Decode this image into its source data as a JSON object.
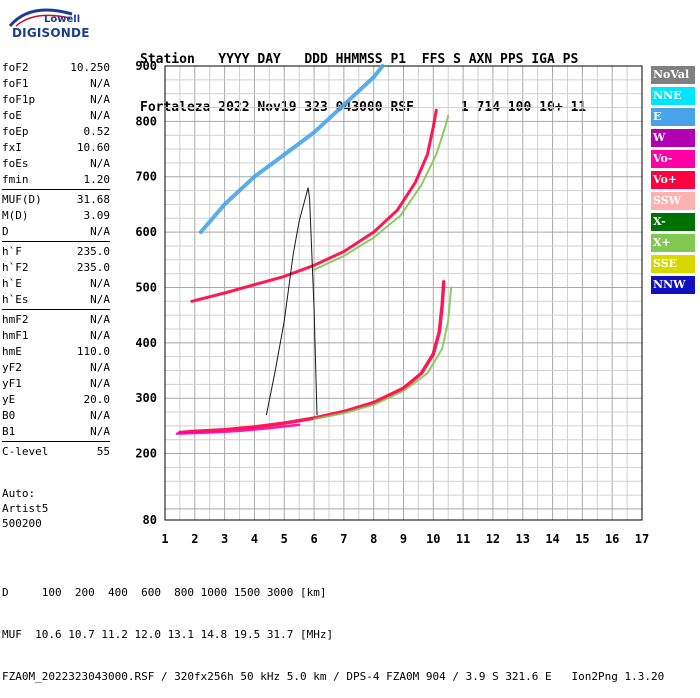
{
  "logo": {
    "top": "Lowell",
    "bottom": "DIGISONDE"
  },
  "header": {
    "line1": "Station   YYYY DAY   DDD HHMMSS P1  FFS S AXN PPS IGA PS",
    "line2": "Fortaleza 2022 Nov19 323 043000 RSF      1 714 100 10+ 11"
  },
  "params": [
    {
      "name": "foF2",
      "value": "10.250"
    },
    {
      "name": "foF1",
      "value": "N/A"
    },
    {
      "name": "foF1p",
      "value": "N/A"
    },
    {
      "name": "foE",
      "value": "N/A"
    },
    {
      "name": "foEp",
      "value": "0.52"
    },
    {
      "name": "fxI",
      "value": "10.60"
    },
    {
      "name": "foEs",
      "value": "N/A"
    },
    {
      "name": "fmin",
      "value": "1.20"
    },
    {
      "sep": true
    },
    {
      "name": "MUF(D)",
      "value": "31.68"
    },
    {
      "name": "M(D)",
      "value": "3.09"
    },
    {
      "name": "D",
      "value": "N/A"
    },
    {
      "sep": true
    },
    {
      "name": "h`F",
      "value": "235.0"
    },
    {
      "name": "h`F2",
      "value": "235.0"
    },
    {
      "name": "h`E",
      "value": "N/A"
    },
    {
      "name": "h`Es",
      "value": "N/A"
    },
    {
      "sep": true
    },
    {
      "name": "hmF2",
      "value": "N/A"
    },
    {
      "name": "hmF1",
      "value": "N/A"
    },
    {
      "name": "hmE",
      "value": "110.0"
    },
    {
      "name": "yF2",
      "value": "N/A"
    },
    {
      "name": "yF1",
      "value": "N/A"
    },
    {
      "name": "yE",
      "value": "20.0"
    },
    {
      "name": "B0",
      "value": "N/A"
    },
    {
      "name": "B1",
      "value": "N/A"
    },
    {
      "sep": true
    },
    {
      "name": "C-level",
      "value": "55"
    }
  ],
  "auto": {
    "line1": "Auto:",
    "line2": "Artist5",
    "line3": "500200"
  },
  "footer": {
    "line1": "D     100  200  400  600  800 1000 1500 3000 [km]",
    "line2": "MUF  10.6 10.7 11.2 12.0 13.1 14.8 19.5 31.7 [MHz]",
    "line3": "FZA0M_2022323043000.RSF / 320fx256h 50 kHz 5.0 km / DPS-4 FZA0M 904 / 3.9 S 321.6 E   Ion2Png 1.3.20"
  },
  "legend": [
    {
      "label": "NoVal",
      "color": "#808080"
    },
    {
      "label": "NNE",
      "color": "#00e5ff"
    },
    {
      "label": "E",
      "color": "#4aa3e8"
    },
    {
      "label": "W",
      "color": "#b000b0"
    },
    {
      "label": "Vo-",
      "color": "#ff00a8"
    },
    {
      "label": "Vo+",
      "color": "#ff0040"
    },
    {
      "label": "SSW",
      "color": "#ffb0b0"
    },
    {
      "label": "X-",
      "color": "#007000"
    },
    {
      "label": "X+",
      "color": "#80c850"
    },
    {
      "label": "SSE",
      "color": "#d8d800"
    },
    {
      "label": "NNW",
      "color": "#1010c0"
    }
  ],
  "chart_data": {
    "type": "scatter",
    "xlabel": "",
    "ylabel": "",
    "xlim": [
      1,
      17
    ],
    "ylim": [
      80,
      900
    ],
    "x_ticks": [
      1,
      2,
      3,
      4,
      5,
      6,
      7,
      8,
      9,
      10,
      11,
      12,
      13,
      14,
      15,
      16,
      17
    ],
    "y_ticks": [
      80,
      200,
      300,
      400,
      500,
      600,
      700,
      800,
      900
    ],
    "grid": true,
    "series": [
      {
        "color": "#ff0040",
        "width": 3.5,
        "points": [
          [
            1.5,
            238
          ],
          [
            2,
            240
          ],
          [
            3,
            243
          ],
          [
            4,
            248
          ],
          [
            5,
            255
          ],
          [
            6,
            264
          ],
          [
            7,
            276
          ],
          [
            8,
            292
          ],
          [
            9,
            318
          ],
          [
            9.6,
            345
          ],
          [
            10,
            380
          ],
          [
            10.2,
            420
          ],
          [
            10.3,
            470
          ],
          [
            10.35,
            510
          ]
        ]
      },
      {
        "color": "#80c850",
        "width": 2,
        "points": [
          [
            6,
            262
          ],
          [
            7,
            273
          ],
          [
            8,
            288
          ],
          [
            9,
            313
          ],
          [
            9.8,
            345
          ],
          [
            10.3,
            390
          ],
          [
            10.5,
            440
          ],
          [
            10.6,
            500
          ]
        ]
      },
      {
        "color": "#ff00a8",
        "width": 2.5,
        "points": [
          [
            1.4,
            236
          ],
          [
            2.5,
            238
          ],
          [
            3.5,
            241
          ],
          [
            4.5,
            246
          ],
          [
            5.5,
            252
          ]
        ]
      },
      {
        "color": "#ff0040",
        "width": 3,
        "points": [
          [
            1.9,
            475
          ],
          [
            3,
            490
          ],
          [
            4,
            505
          ],
          [
            5,
            520
          ],
          [
            6,
            540
          ],
          [
            7,
            565
          ],
          [
            8,
            600
          ],
          [
            8.8,
            640
          ],
          [
            9.4,
            690
          ],
          [
            9.8,
            740
          ],
          [
            10,
            790
          ],
          [
            10.1,
            820
          ]
        ]
      },
      {
        "color": "#80c850",
        "width": 2,
        "points": [
          [
            6,
            532
          ],
          [
            7,
            557
          ],
          [
            8,
            590
          ],
          [
            8.9,
            630
          ],
          [
            9.6,
            685
          ],
          [
            10.1,
            740
          ],
          [
            10.4,
            790
          ],
          [
            10.5,
            810
          ]
        ]
      },
      {
        "color": "#4aa3e8",
        "width": 4,
        "points": [
          [
            2.2,
            600
          ],
          [
            3,
            650
          ],
          [
            4,
            700
          ],
          [
            5,
            740
          ],
          [
            6,
            780
          ],
          [
            7,
            830
          ],
          [
            8,
            880
          ],
          [
            8.3,
            900
          ]
        ]
      },
      {
        "color": "#000000",
        "width": 1,
        "points": [
          [
            4.4,
            270
          ],
          [
            4.7,
            350
          ],
          [
            5,
            440
          ],
          [
            5.3,
            560
          ],
          [
            5.5,
            620
          ],
          [
            5.8,
            680
          ],
          [
            5.85,
            660
          ],
          [
            6,
            460
          ],
          [
            6.1,
            270
          ]
        ]
      }
    ]
  }
}
